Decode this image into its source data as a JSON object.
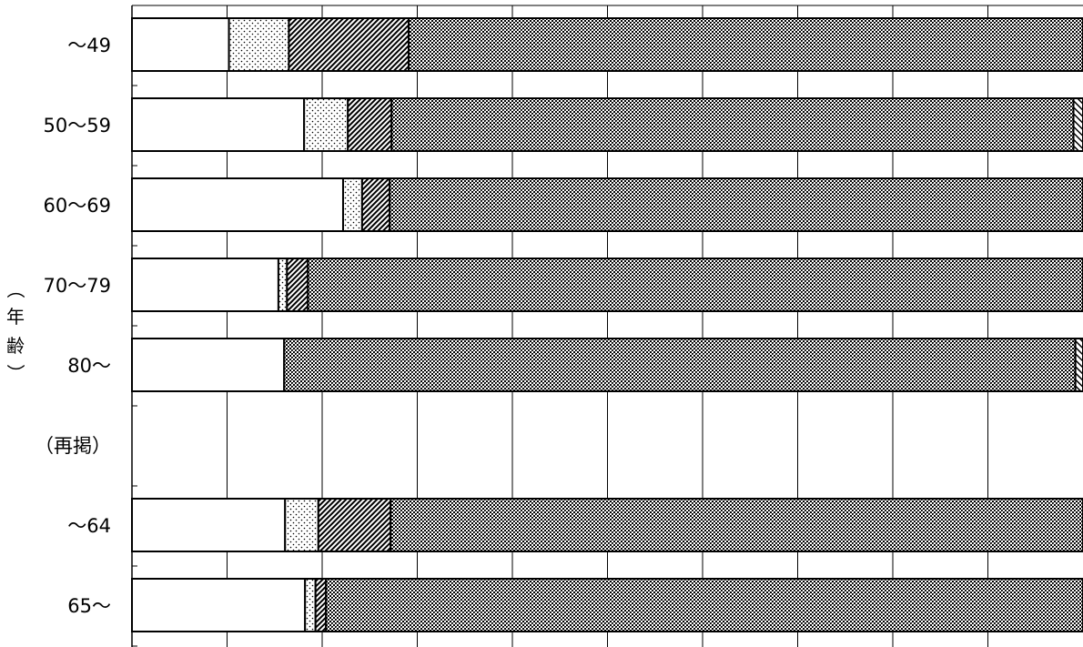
{
  "chart_data": {
    "type": "bar",
    "orientation": "horizontal",
    "stacked": true,
    "ylabel_chars": [
      "（",
      "年",
      "齢",
      "）"
    ],
    "xlim": [
      0,
      100
    ],
    "grid": true,
    "categories": [
      "～49",
      "50～59",
      "60～69",
      "70～79",
      "80～",
      "（再掲）",
      "～64",
      "65～"
    ],
    "series": [
      {
        "pattern": "blank",
        "values": [
          10.2,
          18.1,
          22.2,
          15.4,
          16.0,
          null,
          16.1,
          18.2
        ]
      },
      {
        "pattern": "dots",
        "values": [
          6.3,
          4.6,
          2.0,
          0.9,
          0.0,
          null,
          3.5,
          1.1
        ]
      },
      {
        "pattern": "diagonal",
        "values": [
          12.6,
          4.6,
          2.9,
          2.2,
          0.0,
          null,
          7.6,
          1.1
        ]
      },
      {
        "pattern": "crosshatch",
        "values": [
          70.9,
          71.7,
          72.9,
          81.5,
          83.2,
          null,
          72.8,
          79.6
        ]
      },
      {
        "pattern": "light-diagonal",
        "values": [
          0.0,
          1.0,
          0.0,
          0.0,
          0.8,
          null,
          0.0,
          0.0
        ]
      }
    ],
    "colors": {
      "stroke": "#000000",
      "fill": "#ffffff",
      "grid": "#000000"
    }
  }
}
